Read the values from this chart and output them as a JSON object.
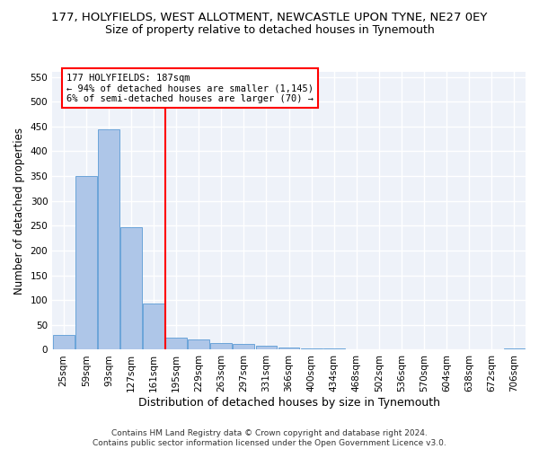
{
  "title": "177, HOLYFIELDS, WEST ALLOTMENT, NEWCASTLE UPON TYNE, NE27 0EY",
  "subtitle": "Size of property relative to detached houses in Tynemouth",
  "xlabel": "Distribution of detached houses by size in Tynemouth",
  "ylabel": "Number of detached properties",
  "bar_color": "#aec6e8",
  "bar_edge_color": "#5b9bd5",
  "bins": [
    "25sqm",
    "59sqm",
    "93sqm",
    "127sqm",
    "161sqm",
    "195sqm",
    "229sqm",
    "263sqm",
    "297sqm",
    "331sqm",
    "366sqm",
    "400sqm",
    "434sqm",
    "468sqm",
    "502sqm",
    "536sqm",
    "570sqm",
    "604sqm",
    "638sqm",
    "672sqm",
    "706sqm"
  ],
  "values": [
    30,
    350,
    445,
    247,
    93,
    25,
    20,
    13,
    11,
    8,
    5,
    3,
    2,
    0,
    0,
    0,
    0,
    0,
    0,
    0,
    2
  ],
  "vline_bin_index": 4.5,
  "annotation_text": "177 HOLYFIELDS: 187sqm\n← 94% of detached houses are smaller (1,145)\n6% of semi-detached houses are larger (70) →",
  "annotation_box_color": "white",
  "annotation_box_edge_color": "red",
  "vline_color": "red",
  "ylim": [
    0,
    560
  ],
  "yticks": [
    0,
    50,
    100,
    150,
    200,
    250,
    300,
    350,
    400,
    450,
    500,
    550
  ],
  "footer_line1": "Contains HM Land Registry data © Crown copyright and database right 2024.",
  "footer_line2": "Contains public sector information licensed under the Open Government Licence v3.0.",
  "bg_color": "#eef2f9",
  "grid_color": "white",
  "title_fontsize": 9.5,
  "subtitle_fontsize": 9,
  "xlabel_fontsize": 9,
  "ylabel_fontsize": 8.5,
  "tick_fontsize": 7.5,
  "annotation_fontsize": 7.5,
  "footer_fontsize": 6.5
}
